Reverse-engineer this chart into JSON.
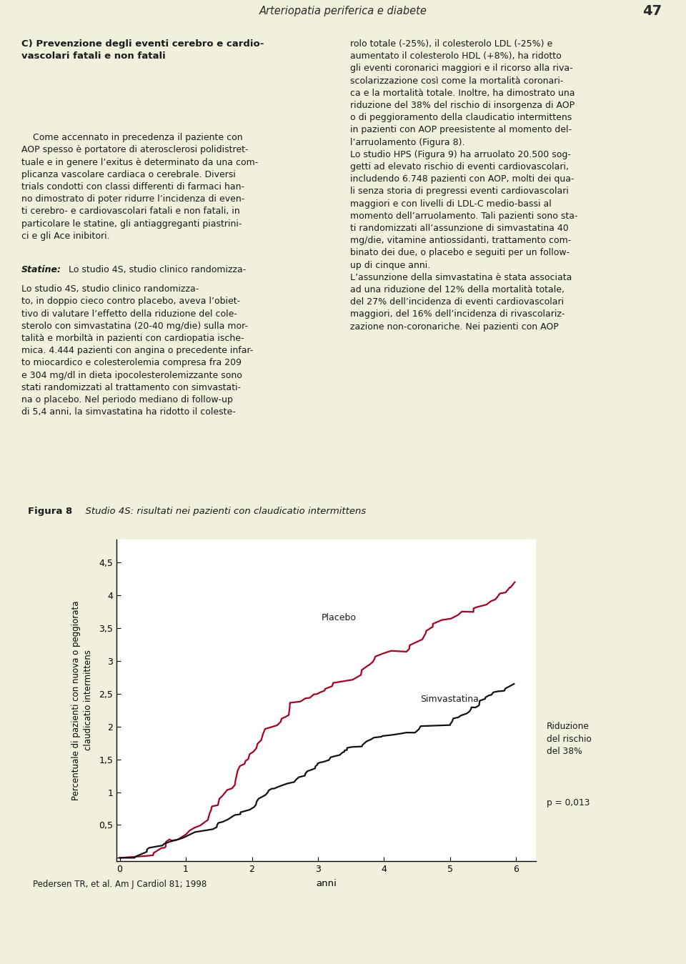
{
  "page_bg": "#f0f0dc",
  "header_text": "Arteriopatia periferica e diabete",
  "header_page": "47",
  "header_line_color": "#c8d400",
  "header_dot_color": "#7a9000",
  "fig_panel_bg": "#ffffff",
  "fig_panel_border": "#c8d400",
  "fig_header_bg": "#c8d400",
  "fig_header_bold": "Figura 8",
  "fig_header_italic": "  Studio 4S: risultati nei pazienti con claudicatio intermittens",
  "ylabel_line1": "Percentuale di pazienti con nuova o peggiorata",
  "ylabel_line2": "claudicatio intermittens",
  "xlabel": "anni",
  "ytick_labels": [
    "",
    "0,5",
    "1",
    "1,5",
    "2",
    "2,5",
    "3",
    "3,5",
    "4",
    "4,5"
  ],
  "yticks": [
    0.0,
    0.5,
    1.0,
    1.5,
    2.0,
    2.5,
    3.0,
    3.5,
    4.0,
    4.5
  ],
  "xticks": [
    0,
    1,
    2,
    3,
    4,
    5,
    6
  ],
  "xlim": [
    -0.05,
    6.3
  ],
  "ylim": [
    -0.05,
    4.85
  ],
  "placebo_label": "Placebo",
  "simva_label": "Simvastatina",
  "risk_text": "Riduzione\ndel rischio\ndel 38%",
  "pval_text": "p = 0,013",
  "citation": "Pedersen TR, et al. Am J Cardiol 81; 1998",
  "placebo_color": "#aa0022",
  "simva_color": "#111111",
  "line_width": 1.6,
  "title_text": "C) Prevenzione degli eventi cerebro e cardio-\nvascolari fatali e non fatali",
  "col1_para1": "    Come accennato in precedenza il paziente con\nAOP spesso è portatore di aterosclerosi polidistret-\ntuale e in genere l’exitus è determinato da una com-\nplicanza vascolare cardiaca o cerebrale. Diversi\ntrials condotti con classi differenti di farmaci han-\nno dimostrato di poter ridurre l’incidenza di even-\nti cerebro- e cardiovascolari fatali e non fatali, in\nparticolare le statine, gli antiaggreganti piastrini-\nci e gli Ace inibitori.",
  "col1_para2_rest": "Lo studio 4S, studio clinico randomizza-\nto, in doppio cieco contro placebo, aveva l’obiet-\ntivo di valutare l’effetto della riduzione del cole-\nsterolo con simvastatina (20-40 mg/die) sulla mor-\ntalità e morbiltà in pazienti con cardiopatia ische-\nmica. 4.444 pazienti con angina o precedente infar-\nto miocardico e colesterolemia compresa fra 209\ne 304 mg/dl in dieta ipocolesterolemizzante sono\nstati randomizzati al trattamento con simvastati-\nna o placebo. Nel periodo mediano di follow-up\ndi 5,4 anni, la simvastatina ha ridotto il coleste-",
  "col2_text": "rolo totale (-25%), il colesterolo LDL (-25%) e\naumentato il colesterolo HDL (+8%), ha ridotto\ngli eventi coronarici maggiori e il ricorso alla riva-\nscolarizzazione così come la mortalità coronari-\nca e la mortalità totale. Inoltre, ha dimostrato una\nriduzione del 38% del rischio di insorgenza di AOP\no di peggioramento della claudicatio intermittens\nin pazienti con AOP preesistente al momento del-\nl’arruolamento (Figura 8).\nLo studio HPS (Figura 9) ha arruolato 20.500 sog-\ngetti ad elevato rischio di eventi cardiovascolari,\nincludendo 6.748 pazienti con AOP, molti dei qua-\nli senza storia di pregressi eventi cardiovascolari\nmaggiori e con livelli di LDL-C medio-bassi al\nmomento dell’arruolamento. Tali pazienti sono sta-\nti randomizzati all’assunzione di simvastatina 40\nmg/die, vitamine antiossidanti, trattamento com-\nbinato dei due, o placebo e seguiti per un follow-\nup di cinque anni.\nL’assunzione della simvastatina è stata associata\nad una riduzione del 12% della mortalità totale,\ndel 27% dell’incidenza di eventi cardiovascolari\nmaggiori, del 16% dell’incidenza di rivascolariz-\nzazione non-coronariche. Nei pazienti con AOP",
  "text_fontsize": 9.0,
  "title_fontsize": 9.5,
  "header_fontsize": 10.5
}
